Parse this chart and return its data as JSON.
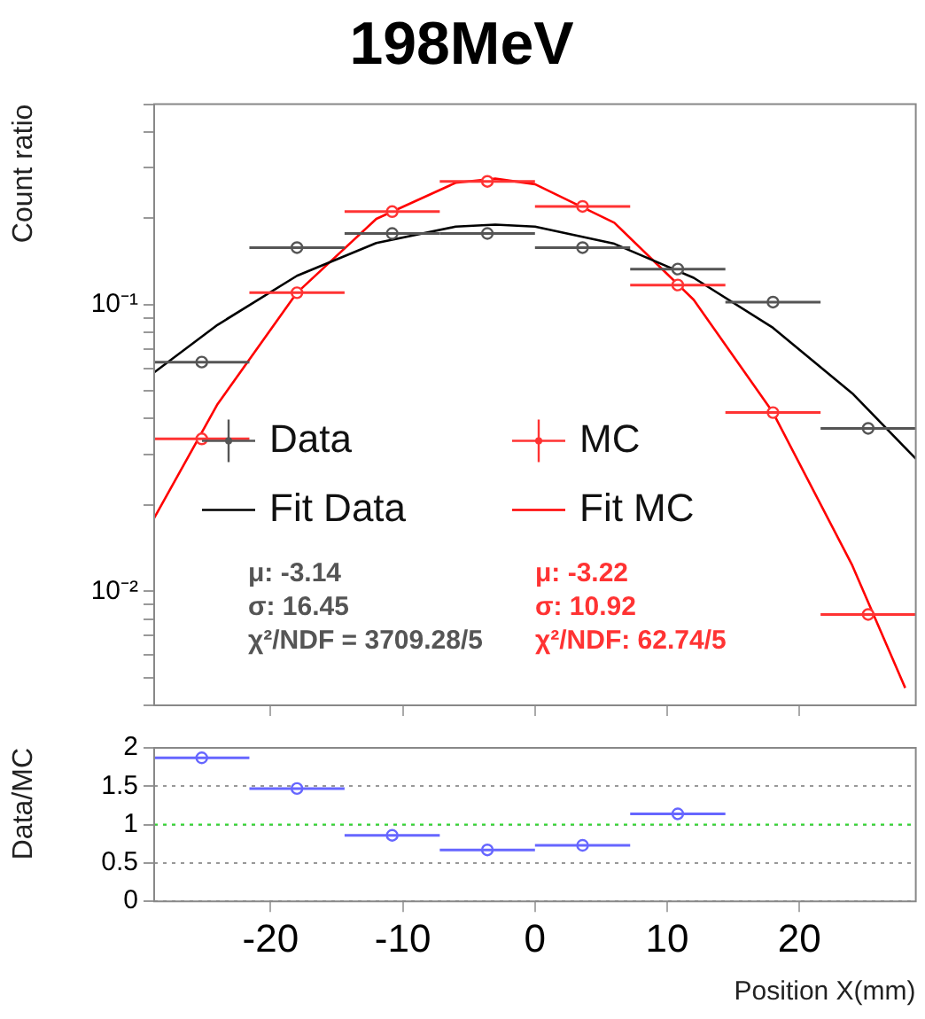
{
  "chart_data": [
    {
      "type": "scatter",
      "title": "198MeV",
      "ylabel": "Count ratio",
      "log": true,
      "xlim": [
        -28.8,
        28.8
      ],
      "xticks": [
        -20,
        -10,
        0,
        10,
        20
      ],
      "ylim": [
        0.004,
        0.5
      ],
      "yticks": [
        {
          "value": 0.004,
          "label": null
        },
        {
          "value": 0.005,
          "label": null
        },
        {
          "value": 0.006,
          "label": null
        },
        {
          "value": 0.007,
          "label": null
        },
        {
          "value": 0.008,
          "label": null
        },
        {
          "value": 0.009,
          "label": null
        },
        {
          "value": 0.01,
          "label": "10⁻²"
        },
        {
          "value": 0.02,
          "label": null
        },
        {
          "value": 0.03,
          "label": null
        },
        {
          "value": 0.04,
          "label": null
        },
        {
          "value": 0.05,
          "label": null
        },
        {
          "value": 0.06,
          "label": null
        },
        {
          "value": 0.07,
          "label": null
        },
        {
          "value": 0.08,
          "label": null
        },
        {
          "value": 0.09,
          "label": null
        },
        {
          "value": 0.1,
          "label": "10⁻¹"
        },
        {
          "value": 0.2,
          "label": null
        },
        {
          "value": 0.3,
          "label": null
        },
        {
          "value": 0.4,
          "label": null
        },
        {
          "value": 0.5,
          "label": null
        }
      ],
      "tick_labels": "y",
      "grid": false,
      "legend": "bottom",
      "annotations": [
        "μ: -3.14",
        "σ: 16.45",
        "χ²/NDF = 3709.28/5",
        "μ: -3.22",
        "σ: 10.92",
        "χ²/NDF: 62.74/5"
      ],
      "series": [
        {
          "name": "Data",
          "type": "scatter",
          "marker": "circle",
          "color": "#555555",
          "x": [
            -25.2,
            -18,
            -10.8,
            -3.6,
            3.6,
            10.8,
            18,
            25.2
          ],
          "values": [
            0.063,
            0.158,
            0.177,
            0.177,
            0.158,
            0.133,
            0.102,
            0.037
          ],
          "xerrors": [
            3.6,
            3.6,
            3.6,
            3.6,
            3.6,
            3.6,
            3.6,
            3.6
          ]
        },
        {
          "name": "MC",
          "type": "scatter",
          "marker": "circle",
          "color": "#ff3333",
          "x": [
            -25.2,
            -18,
            -10.8,
            -3.6,
            3.6,
            10.8,
            18,
            25.2
          ],
          "values": [
            0.034,
            0.11,
            0.211,
            0.269,
            0.22,
            0.117,
            0.042,
            0.0083
          ],
          "xerrors": [
            3.6,
            3.6,
            3.6,
            3.6,
            3.6,
            3.6,
            3.6,
            3.6
          ]
        },
        {
          "name": "Fit Data",
          "type": "line",
          "marker": "none",
          "color": "#000000",
          "x": [
            -28.8,
            -24,
            -18,
            -12,
            -6,
            -3,
            0,
            6,
            12,
            18,
            24,
            28.8
          ],
          "values": [
            0.058,
            0.085,
            0.126,
            0.164,
            0.187,
            0.19,
            0.187,
            0.163,
            0.124,
            0.083,
            0.049,
            0.029
          ]
        },
        {
          "name": "Fit MC",
          "type": "line",
          "marker": "none",
          "color": "#ff0000",
          "x": [
            -28.8,
            -24,
            -18,
            -12,
            -6,
            -3,
            0,
            6,
            12,
            18,
            24,
            28
          ],
          "values": [
            0.018,
            0.045,
            0.11,
            0.199,
            0.266,
            0.275,
            0.263,
            0.193,
            0.104,
            0.042,
            0.0123,
            0.0046
          ]
        }
      ]
    },
    {
      "type": "scatter",
      "ylabel": "Data/MC",
      "xlabel": "Position X(mm)",
      "xlim": [
        -28.8,
        28.8
      ],
      "xticks": [
        -20,
        -10,
        0,
        10,
        20
      ],
      "ylim": [
        0,
        2
      ],
      "yticks": [
        0,
        0.5,
        1,
        1.5,
        2
      ],
      "grid": "y",
      "ref_lines": [
        {
          "axis": "y",
          "value": 1,
          "color": "#33dd33",
          "line_style": "dotted"
        }
      ],
      "series": [
        {
          "type": "scatter",
          "marker": "circle",
          "color": "#6666ff",
          "x": [
            -25.2,
            -18,
            -10.8,
            -3.6,
            3.6,
            10.8
          ],
          "values": [
            1.87,
            1.47,
            0.86,
            0.67,
            0.73,
            1.14
          ],
          "xerrors": [
            3.6,
            3.6,
            3.6,
            3.6,
            3.6,
            3.6
          ]
        }
      ]
    }
  ]
}
